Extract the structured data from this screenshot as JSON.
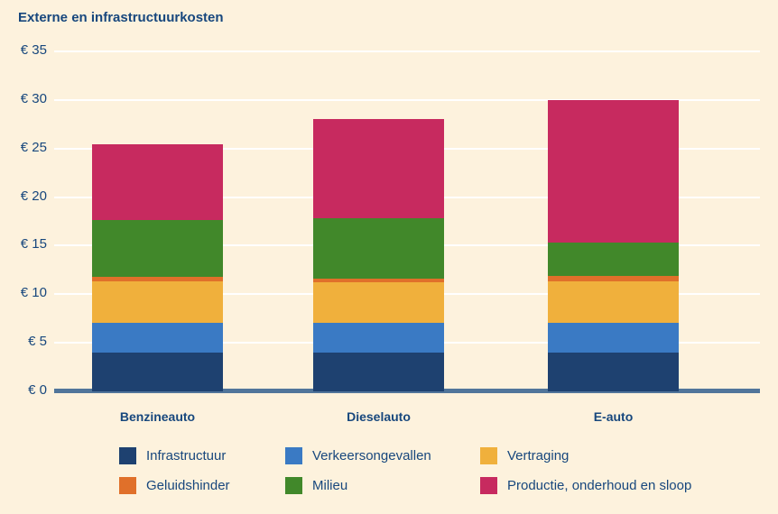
{
  "title": "Externe en infrastructuurkosten",
  "colors": {
    "background": "#fdf2dd",
    "text": "#17477d",
    "gridline": "#ffffff",
    "axis_line": "#51759a"
  },
  "chart_data": {
    "type": "bar",
    "stacked": true,
    "title": "Externe en infrastructuurkosten",
    "categories": [
      "Benzineauto",
      "Dieselauto",
      "E-auto"
    ],
    "series": [
      {
        "name": "Infrastructuur",
        "color": "#1e4170",
        "values": [
          4.0,
          4.0,
          4.0
        ]
      },
      {
        "name": "Verkeersongevallen",
        "color": "#3a7ac4",
        "values": [
          3.1,
          3.1,
          3.1
        ]
      },
      {
        "name": "Vertraging",
        "color": "#f0b03c",
        "values": [
          4.2,
          4.1,
          4.2
        ]
      },
      {
        "name": "Geluidshinder",
        "color": "#e0702a",
        "values": [
          0.5,
          0.4,
          0.6
        ]
      },
      {
        "name": "Milieu",
        "color": "#41882a",
        "values": [
          5.8,
          6.2,
          3.4
        ]
      },
      {
        "name": "Productie, onderhoud en sloop",
        "color": "#c72a5f",
        "values": [
          7.8,
          10.2,
          14.7
        ]
      }
    ],
    "totals": [
      25.4,
      28.0,
      29.9
    ],
    "xlabel": "",
    "ylabel": "",
    "ylim": [
      0,
      35
    ],
    "yticks": [
      {
        "value": 0,
        "label": "€ 0"
      },
      {
        "value": 5,
        "label": "€ 5"
      },
      {
        "value": 10,
        "label": "€ 10"
      },
      {
        "value": 15,
        "label": "€ 15"
      },
      {
        "value": 20,
        "label": "€ 20"
      },
      {
        "value": 25,
        "label": "€ 25"
      },
      {
        "value": 30,
        "label": "€ 30"
      },
      {
        "value": 35,
        "label": "€ 35"
      }
    ],
    "grid": true,
    "legend_position": "bottom",
    "legend_rows": [
      [
        "Infrastructuur",
        "Verkeersongevallen",
        "Vertraging"
      ],
      [
        "Geluidshinder",
        "Milieu",
        "Productie, onderhoud en sloop"
      ]
    ]
  }
}
